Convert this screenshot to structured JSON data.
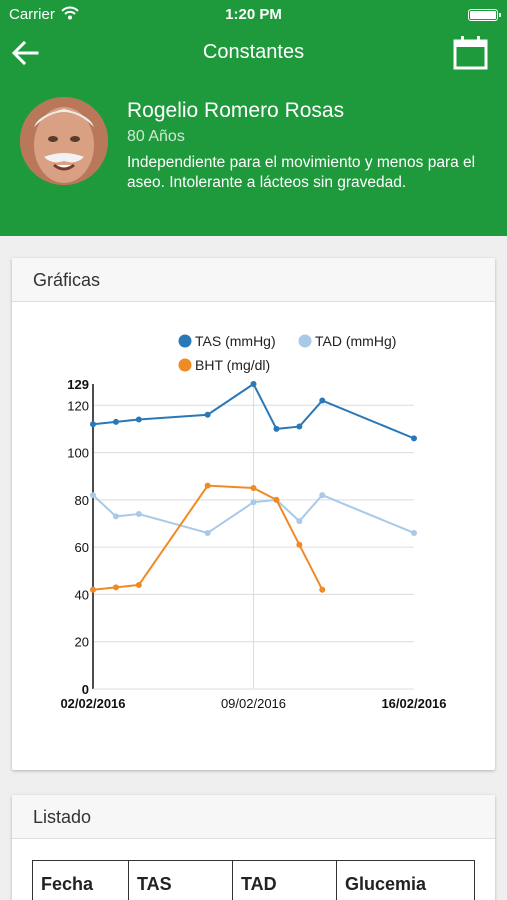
{
  "status_bar": {
    "carrier": "Carrier",
    "time": "1:20 PM"
  },
  "nav": {
    "title": "Constantes",
    "back_icon": "arrow-left-icon",
    "calendar_icon": "calendar-icon"
  },
  "patient": {
    "name": "Rogelio Romero Rosas",
    "age": "80 Años",
    "description": "Independiente para el movimiento y menos para el aseo. Intolerante a lácteos sin gravedad."
  },
  "colors": {
    "brand": "#1e9a3c",
    "tas": "#2a78b8",
    "tad": "#a9c9e8",
    "bht": "#f08a24"
  },
  "charts_section": {
    "title": "Gráficas"
  },
  "chart_data": {
    "type": "line",
    "legend": [
      "TAS (mmHg)",
      "TAD (mmHg)",
      "BHT (mg/dl)"
    ],
    "legend_position": "top",
    "x_ticks": [
      "02/02/2016",
      "09/02/2016",
      "16/02/2016"
    ],
    "y_ticks": [
      "0",
      "20",
      "40",
      "60",
      "80",
      "100",
      "120",
      "129"
    ],
    "xlim": [
      "02/02/2016",
      "16/02/2016"
    ],
    "ylim": [
      0,
      129
    ],
    "grid": true,
    "series": [
      {
        "name": "TAS (mmHg)",
        "x": [
          "02/02/2016",
          "03/02/2016",
          "04/02/2016",
          "07/02/2016",
          "09/02/2016",
          "10/02/2016",
          "11/02/2016",
          "12/02/2016",
          "16/02/2016"
        ],
        "values": [
          112,
          113,
          114,
          116,
          129,
          110,
          111,
          122,
          106
        ]
      },
      {
        "name": "TAD (mmHg)",
        "x": [
          "02/02/2016",
          "03/02/2016",
          "04/02/2016",
          "07/02/2016",
          "09/02/2016",
          "10/02/2016",
          "11/02/2016",
          "12/02/2016",
          "16/02/2016"
        ],
        "values": [
          82,
          73,
          74,
          66,
          79,
          80,
          71,
          82,
          66
        ]
      },
      {
        "name": "BHT (mg/dl)",
        "x": [
          "02/02/2016",
          "03/02/2016",
          "04/02/2016",
          "07/02/2016",
          "09/02/2016",
          "10/02/2016",
          "11/02/2016",
          "12/02/2016"
        ],
        "values": [
          42,
          43,
          44,
          86,
          85,
          80,
          61,
          42
        ]
      }
    ]
  },
  "list_section": {
    "title": "Listado",
    "columns": [
      "Fecha",
      "TAS",
      "TAD",
      "Glucemia"
    ]
  }
}
